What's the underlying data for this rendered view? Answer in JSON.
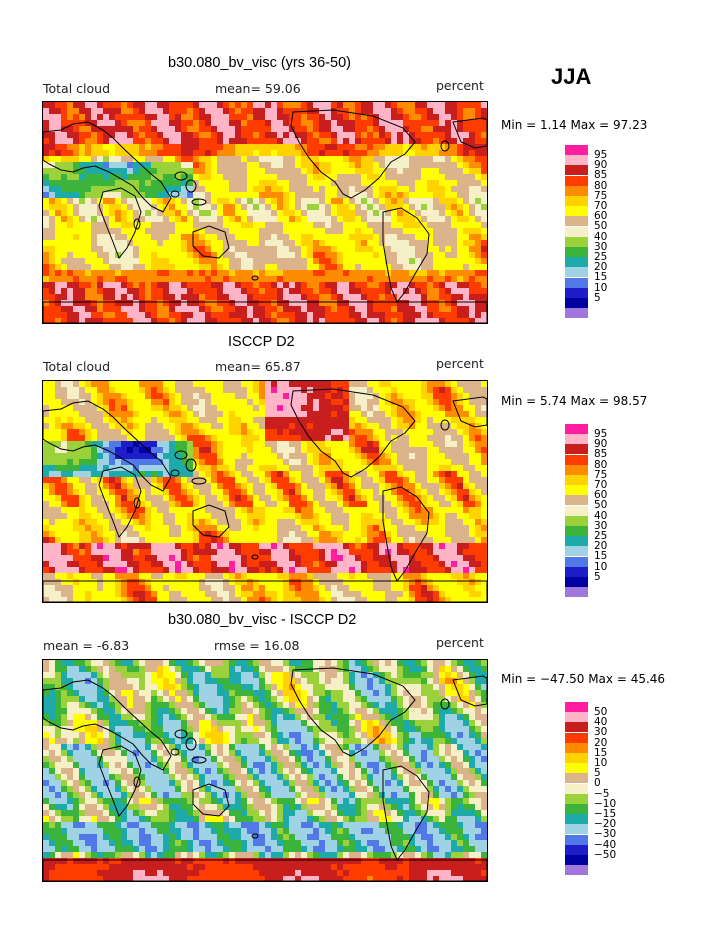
{
  "season": "JJA",
  "panels": [
    {
      "title": "b30.080_bv_visc (yrs 36-50)",
      "left_label": "Total cloud",
      "center_label": "mean=  59.06",
      "right_label": "percent",
      "minmax": "Min =    1.14  Max =  97.23",
      "colorbar": {
        "labels": [
          "95",
          "90",
          "85",
          "80",
          "75",
          "70",
          "60",
          "50",
          "40",
          "30",
          "25",
          "20",
          "15",
          "10",
          "5"
        ],
        "colors": [
          "#ff1ea0",
          "#ffb4c8",
          "#c81e1e",
          "#ff3c00",
          "#ff8c00",
          "#ffd200",
          "#ffff00",
          "#dcb48c",
          "#f5f0c8",
          "#9bd23c",
          "#3cb43c",
          "#1eaaaa",
          "#a0d2e6",
          "#5078e6",
          "#1e1ec8",
          "#0000a0",
          "#a078dc"
        ]
      },
      "field": "model"
    },
    {
      "title": "ISCCP D2",
      "left_label": "Total cloud",
      "center_label": "mean=  65.87",
      "right_label": "percent",
      "minmax": "Min =    5.74  Max =  98.57",
      "colorbar": {
        "labels": [
          "95",
          "90",
          "85",
          "80",
          "75",
          "70",
          "60",
          "50",
          "40",
          "30",
          "25",
          "20",
          "15",
          "10",
          "5"
        ],
        "colors": [
          "#ff1ea0",
          "#ffb4c8",
          "#c81e1e",
          "#ff3c00",
          "#ff8c00",
          "#ffd200",
          "#ffff00",
          "#dcb48c",
          "#f5f0c8",
          "#9bd23c",
          "#3cb43c",
          "#1eaaaa",
          "#a0d2e6",
          "#5078e6",
          "#1e1ec8",
          "#0000a0",
          "#a078dc"
        ]
      },
      "field": "obs"
    },
    {
      "title": "b30.080_bv_visc - ISCCP D2",
      "left_label": "mean =   -6.83",
      "center_label": "rmse =  16.08",
      "right_label": "percent",
      "minmax": "Min = −47.50  Max =  45.46",
      "colorbar": {
        "labels": [
          "50",
          "40",
          "30",
          "20",
          "15",
          "10",
          "5",
          "0",
          "−5",
          "−10",
          "−15",
          "−20",
          "−30",
          "−40",
          "−50"
        ],
        "colors": [
          "#ff1ea0",
          "#ffb4c8",
          "#c81e1e",
          "#ff3c00",
          "#ff8c00",
          "#ffd200",
          "#ffff00",
          "#dcb48c",
          "#f5f0c8",
          "#9bd23c",
          "#3cb43c",
          "#1eaaaa",
          "#a0d2e6",
          "#5078e6",
          "#1e1ec8",
          "#0000a0",
          "#a078dc"
        ]
      },
      "field": "diff"
    }
  ]
}
